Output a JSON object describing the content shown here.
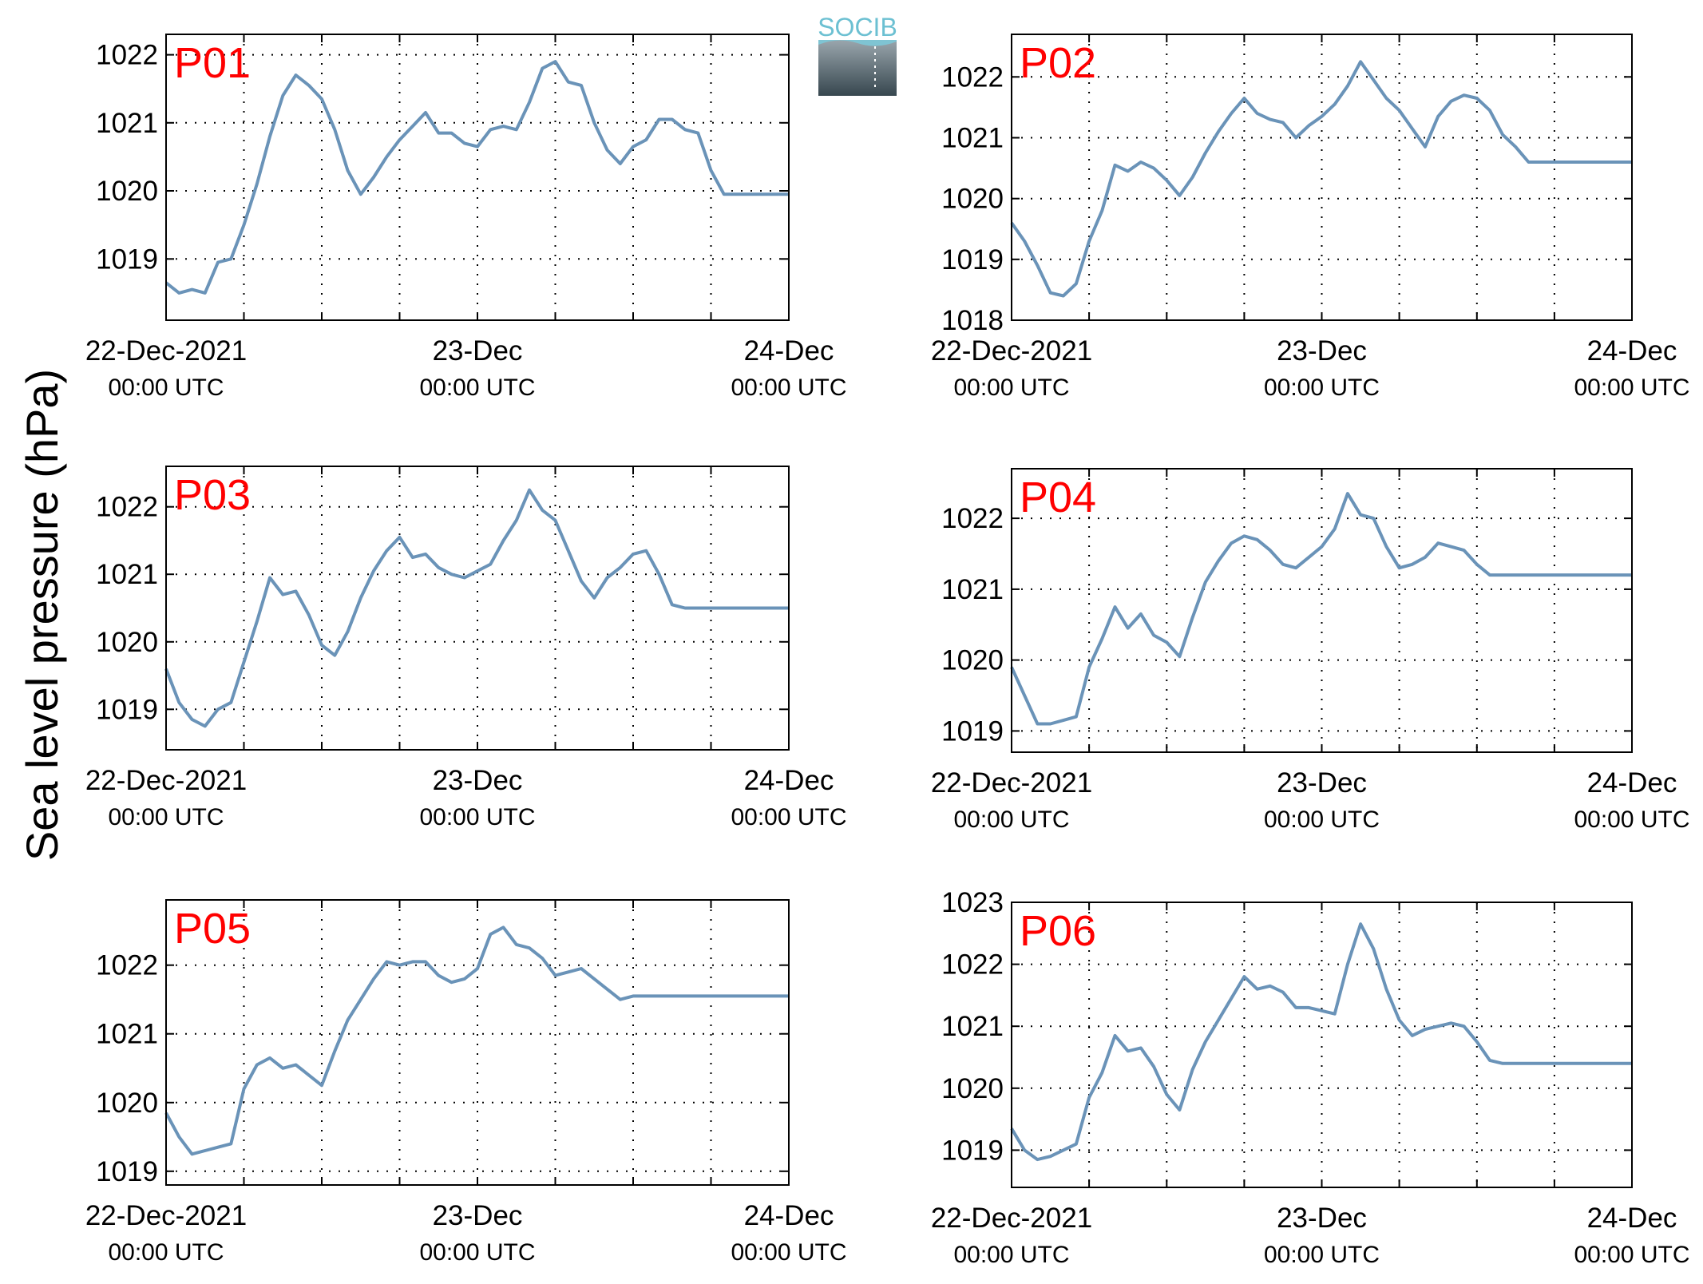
{
  "figure": {
    "ylabel": "Sea level pressure (hPa)",
    "logo_text": "SOCIB",
    "line_color": "#6a93b8",
    "station_label_color": "#ff0000",
    "grid": "dotted"
  },
  "chart_data": [
    {
      "type": "line",
      "title": "P01",
      "x_tick_labels": [
        [
          "22-Dec-2021",
          "00:00 UTC"
        ],
        [
          "23-Dec",
          "00:00 UTC"
        ],
        [
          "24-Dec",
          "00:00 UTC"
        ]
      ],
      "x_unit": "hours since 22-Dec-2021 00:00 UTC",
      "xlim": [
        0,
        48
      ],
      "ylim": [
        18.1,
        22.3
      ],
      "y_ticks": [
        1019,
        1020,
        1021,
        1022
      ],
      "y_offset": 1000,
      "series": [
        {
          "x": [
            0,
            1,
            2,
            3,
            4,
            5,
            6,
            7,
            8,
            9,
            10,
            11,
            12,
            13,
            14,
            15,
            16,
            17,
            18,
            19,
            20,
            21,
            22,
            23,
            24,
            25,
            26,
            27,
            28,
            29,
            30,
            31,
            32,
            33,
            34,
            35,
            36,
            37,
            38,
            39,
            40,
            41,
            42,
            43,
            44,
            45,
            46,
            47,
            48
          ],
          "values": [
            18.65,
            18.5,
            18.55,
            18.5,
            18.95,
            19.0,
            19.5,
            20.1,
            20.8,
            21.4,
            21.7,
            21.55,
            21.35,
            20.9,
            20.3,
            19.95,
            20.2,
            20.5,
            20.75,
            20.95,
            21.15,
            20.85,
            20.85,
            20.7,
            20.65,
            20.9,
            20.95,
            20.9,
            21.3,
            21.8,
            21.9,
            21.6,
            21.55,
            21.0,
            20.6,
            20.4,
            20.65,
            20.75,
            21.05,
            21.05,
            20.9,
            20.85,
            20.3,
            19.95,
            19.95,
            19.95,
            19.95,
            19.95,
            19.95
          ]
        }
      ]
    },
    {
      "type": "line",
      "title": "P02",
      "x_tick_labels": [
        [
          "22-Dec-2021",
          "00:00 UTC"
        ],
        [
          "23-Dec",
          "00:00 UTC"
        ],
        [
          "24-Dec",
          "00:00 UTC"
        ]
      ],
      "x_unit": "hours since 22-Dec-2021 00:00 UTC",
      "xlim": [
        0,
        48
      ],
      "ylim": [
        18.0,
        22.7
      ],
      "y_ticks": [
        1018,
        1019,
        1020,
        1021,
        1022
      ],
      "y_offset": 1000,
      "series": [
        {
          "x": [
            0,
            1,
            2,
            3,
            4,
            5,
            6,
            7,
            8,
            9,
            10,
            11,
            12,
            13,
            14,
            15,
            16,
            17,
            18,
            19,
            20,
            21,
            22,
            23,
            24,
            25,
            26,
            27,
            28,
            29,
            30,
            31,
            32,
            33,
            34,
            35,
            36,
            37,
            38,
            39,
            40,
            41,
            42,
            43,
            44,
            45,
            46,
            47,
            48
          ],
          "values": [
            19.6,
            19.3,
            18.9,
            18.45,
            18.4,
            18.6,
            19.3,
            19.8,
            20.55,
            20.45,
            20.6,
            20.5,
            20.3,
            20.05,
            20.35,
            20.75,
            21.1,
            21.4,
            21.65,
            21.4,
            21.3,
            21.25,
            21.0,
            21.2,
            21.35,
            21.55,
            21.85,
            22.25,
            21.95,
            21.65,
            21.45,
            21.15,
            20.85,
            21.35,
            21.6,
            21.7,
            21.65,
            21.45,
            21.05,
            20.85,
            20.6,
            20.6,
            20.6,
            20.6,
            20.6,
            20.6,
            20.6,
            20.6,
            20.6
          ]
        }
      ]
    },
    {
      "type": "line",
      "title": "P03",
      "x_tick_labels": [
        [
          "22-Dec-2021",
          "00:00 UTC"
        ],
        [
          "23-Dec",
          "00:00 UTC"
        ],
        [
          "24-Dec",
          "00:00 UTC"
        ]
      ],
      "x_unit": "hours since 22-Dec-2021 00:00 UTC",
      "xlim": [
        0,
        48
      ],
      "ylim": [
        18.4,
        22.6
      ],
      "y_ticks": [
        1019,
        1020,
        1021,
        1022
      ],
      "y_offset": 1000,
      "series": [
        {
          "x": [
            0,
            1,
            2,
            3,
            4,
            5,
            6,
            7,
            8,
            9,
            10,
            11,
            12,
            13,
            14,
            15,
            16,
            17,
            18,
            19,
            20,
            21,
            22,
            23,
            24,
            25,
            26,
            27,
            28,
            29,
            30,
            31,
            32,
            33,
            34,
            35,
            36,
            37,
            38,
            39,
            40,
            41,
            42,
            43,
            44,
            45,
            46,
            47,
            48
          ],
          "values": [
            19.6,
            19.1,
            18.85,
            18.75,
            19.0,
            19.1,
            19.7,
            20.3,
            20.95,
            20.7,
            20.75,
            20.4,
            19.95,
            19.8,
            20.15,
            20.65,
            21.05,
            21.35,
            21.55,
            21.25,
            21.3,
            21.1,
            21.0,
            20.95,
            21.05,
            21.15,
            21.5,
            21.8,
            22.25,
            21.95,
            21.8,
            21.35,
            20.9,
            20.65,
            20.95,
            21.1,
            21.3,
            21.35,
            21.0,
            20.55,
            20.5,
            20.5,
            20.5,
            20.5,
            20.5,
            20.5,
            20.5,
            20.5,
            20.5
          ]
        }
      ]
    },
    {
      "type": "line",
      "title": "P04",
      "x_tick_labels": [
        [
          "22-Dec-2021",
          "00:00 UTC"
        ],
        [
          "23-Dec",
          "00:00 UTC"
        ],
        [
          "24-Dec",
          "00:00 UTC"
        ]
      ],
      "x_unit": "hours since 22-Dec-2021 00:00 UTC",
      "xlim": [
        0,
        48
      ],
      "ylim": [
        18.7,
        22.7
      ],
      "y_ticks": [
        1019,
        1020,
        1021,
        1022
      ],
      "y_offset": 1000,
      "series": [
        {
          "x": [
            0,
            1,
            2,
            3,
            4,
            5,
            6,
            7,
            8,
            9,
            10,
            11,
            12,
            13,
            14,
            15,
            16,
            17,
            18,
            19,
            20,
            21,
            22,
            23,
            24,
            25,
            26,
            27,
            28,
            29,
            30,
            31,
            32,
            33,
            34,
            35,
            36,
            37,
            38,
            39,
            40,
            41,
            42,
            43,
            44,
            45,
            46,
            47,
            48
          ],
          "values": [
            19.9,
            19.5,
            19.1,
            19.1,
            19.15,
            19.2,
            19.9,
            20.3,
            20.75,
            20.45,
            20.65,
            20.35,
            20.25,
            20.05,
            20.6,
            21.1,
            21.4,
            21.65,
            21.75,
            21.7,
            21.55,
            21.35,
            21.3,
            21.45,
            21.6,
            21.85,
            22.35,
            22.05,
            22.0,
            21.6,
            21.3,
            21.35,
            21.45,
            21.65,
            21.6,
            21.55,
            21.35,
            21.2,
            21.2,
            21.2,
            21.2,
            21.2,
            21.2,
            21.2,
            21.2,
            21.2,
            21.2,
            21.2,
            21.2
          ]
        }
      ]
    },
    {
      "type": "line",
      "title": "P05",
      "x_tick_labels": [
        [
          "22-Dec-2021",
          "00:00 UTC"
        ],
        [
          "23-Dec",
          "00:00 UTC"
        ],
        [
          "24-Dec",
          "00:00 UTC"
        ]
      ],
      "x_unit": "hours since 22-Dec-2021 00:00 UTC",
      "xlim": [
        0,
        48
      ],
      "ylim": [
        18.8,
        22.95
      ],
      "y_ticks": [
        1019,
        1020,
        1021,
        1022
      ],
      "y_offset": 1000,
      "series": [
        {
          "x": [
            0,
            1,
            2,
            3,
            4,
            5,
            6,
            7,
            8,
            9,
            10,
            11,
            12,
            13,
            14,
            15,
            16,
            17,
            18,
            19,
            20,
            21,
            22,
            23,
            24,
            25,
            26,
            27,
            28,
            29,
            30,
            31,
            32,
            33,
            34,
            35,
            36,
            37,
            38,
            39,
            40,
            41,
            42,
            43,
            44,
            45,
            46,
            47,
            48
          ],
          "values": [
            19.85,
            19.5,
            19.25,
            19.3,
            19.35,
            19.4,
            20.2,
            20.55,
            20.65,
            20.5,
            20.55,
            20.4,
            20.25,
            20.75,
            21.2,
            21.5,
            21.8,
            22.05,
            22.0,
            22.05,
            22.05,
            21.85,
            21.75,
            21.8,
            21.95,
            22.45,
            22.55,
            22.3,
            22.25,
            22.1,
            21.85,
            21.9,
            21.95,
            21.8,
            21.65,
            21.5,
            21.55,
            21.55,
            21.55,
            21.55,
            21.55,
            21.55,
            21.55,
            21.55,
            21.55,
            21.55,
            21.55,
            21.55,
            21.55
          ]
        }
      ]
    },
    {
      "type": "line",
      "title": "P06",
      "x_tick_labels": [
        [
          "22-Dec-2021",
          "00:00 UTC"
        ],
        [
          "23-Dec",
          "00:00 UTC"
        ],
        [
          "24-Dec",
          "00:00 UTC"
        ]
      ],
      "x_unit": "hours since 22-Dec-2021 00:00 UTC",
      "xlim": [
        0,
        48
      ],
      "ylim": [
        18.4,
        23.0
      ],
      "y_ticks": [
        1019,
        1020,
        1021,
        1022,
        1023
      ],
      "y_offset": 1000,
      "series": [
        {
          "x": [
            0,
            1,
            2,
            3,
            4,
            5,
            6,
            7,
            8,
            9,
            10,
            11,
            12,
            13,
            14,
            15,
            16,
            17,
            18,
            19,
            20,
            21,
            22,
            23,
            24,
            25,
            26,
            27,
            28,
            29,
            30,
            31,
            32,
            33,
            34,
            35,
            36,
            37,
            38,
            39,
            40,
            41,
            42,
            43,
            44,
            45,
            46,
            47,
            48
          ],
          "values": [
            19.35,
            19.0,
            18.85,
            18.9,
            19.0,
            19.1,
            19.85,
            20.25,
            20.85,
            20.6,
            20.65,
            20.35,
            19.9,
            19.65,
            20.3,
            20.75,
            21.1,
            21.45,
            21.8,
            21.6,
            21.65,
            21.55,
            21.3,
            21.3,
            21.25,
            21.2,
            22.0,
            22.65,
            22.25,
            21.6,
            21.1,
            20.85,
            20.95,
            21.0,
            21.05,
            21.0,
            20.75,
            20.45,
            20.4,
            20.4,
            20.4,
            20.4,
            20.4,
            20.4,
            20.4,
            20.4,
            20.4,
            20.4,
            20.4
          ]
        }
      ]
    }
  ]
}
